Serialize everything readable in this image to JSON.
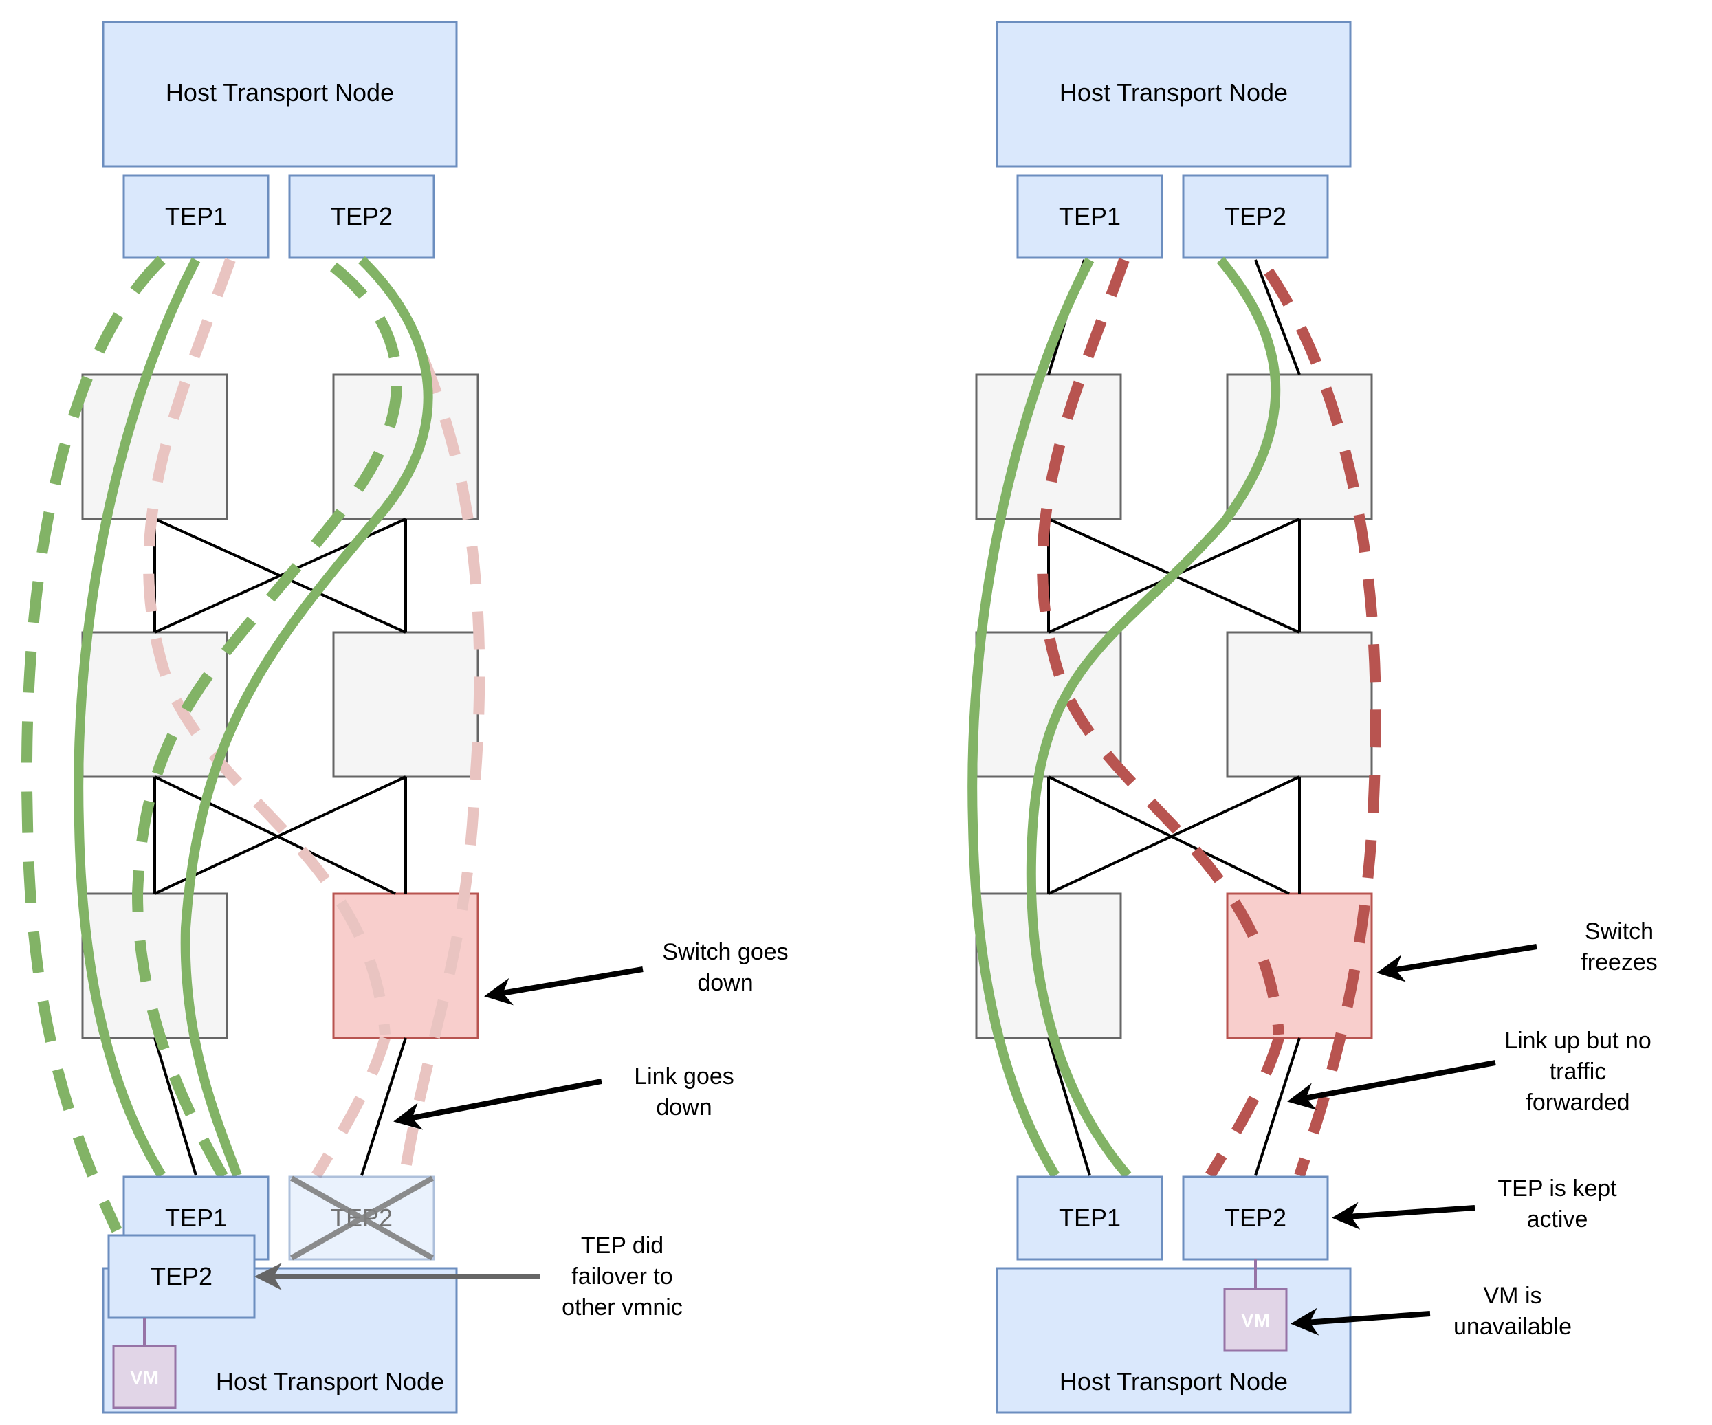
{
  "colors": {
    "node_fill": "#dae8fc",
    "node_stroke": "#6c8ebf",
    "switch_fill": "#f5f5f5",
    "switch_stroke": "#666666",
    "failed_fill": "#f8cecc",
    "failed_stroke": "#b85450",
    "vm_fill": "#e1d5e7",
    "vm_stroke": "#9673a6",
    "active_path": "#82b366",
    "standby_path_faded": "#e9c4c1",
    "failed_path": "#b85450"
  },
  "left": {
    "top_node": "Host Transport Node",
    "top_tep1": "TEP1",
    "top_tep2": "TEP2",
    "bottom_tep1": "TEP1",
    "bottom_tep2_crossed": "TEP2",
    "bottom_tep2_failover": "TEP2",
    "bottom_node": "Host Transport Node",
    "vm": "VM",
    "annotations": {
      "switch_line1": "Switch goes",
      "switch_line2": "down",
      "link_line1": "Link goes",
      "link_line2": "down",
      "tep_line1": "TEP did",
      "tep_line2": "failover to",
      "tep_line3": "other vmnic"
    }
  },
  "right": {
    "top_node": "Host Transport Node",
    "top_tep1": "TEP1",
    "top_tep2": "TEP2",
    "bottom_tep1": "TEP1",
    "bottom_tep2": "TEP2",
    "bottom_node": "Host Transport Node",
    "vm": "VM",
    "annotations": {
      "switch_line1": "Switch",
      "switch_line2": "freezes",
      "link_line1": "Link up but no",
      "link_line2": "traffic",
      "link_line3": "forwarded",
      "tep_line1": "TEP is kept",
      "tep_line2": "active",
      "vm_line1": "VM is",
      "vm_line2": "unavailable"
    }
  }
}
